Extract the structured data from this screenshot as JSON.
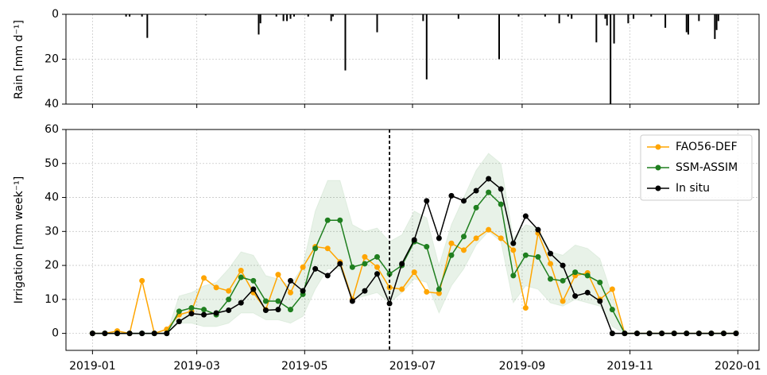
{
  "chart_data": [
    {
      "type": "bar",
      "ylabel": "Rain [mm d⁻¹]",
      "color": "#000000",
      "x": [
        19,
        21,
        28,
        31,
        64,
        94,
        95,
        104,
        108,
        110,
        112,
        114,
        122,
        135,
        136,
        143,
        161,
        187,
        189,
        207,
        230,
        241,
        256,
        264,
        269,
        271,
        285,
        290,
        291,
        293,
        295,
        303,
        306,
        316,
        324,
        336,
        337,
        343,
        352,
        353,
        354
      ],
      "values": [
        1,
        1,
        1,
        10.5,
        0.5,
        9,
        4,
        1,
        3,
        3,
        2,
        1,
        1,
        3,
        1,
        25,
        8,
        3,
        29,
        2,
        20,
        1,
        1,
        4,
        1,
        2,
        12.5,
        2,
        5,
        40,
        13,
        4,
        2,
        1,
        6,
        8,
        9,
        3,
        11,
        7,
        3
      ],
      "xlim": [
        -15,
        377
      ],
      "ylim": [
        40,
        0
      ],
      "yticks": [
        0,
        20,
        40
      ],
      "grid": true
    },
    {
      "type": "line",
      "ylabel": "Irrigation [mm week⁻¹]",
      "legend": "upper right",
      "grid": true,
      "vline": 168,
      "x": [
        0,
        7,
        14,
        21,
        28,
        35,
        42,
        49,
        56,
        63,
        70,
        77,
        84,
        91,
        98,
        105,
        112,
        119,
        126,
        133,
        140,
        147,
        154,
        161,
        168,
        175,
        182,
        189,
        196,
        203,
        210,
        217,
        224,
        231,
        238,
        245,
        252,
        259,
        266,
        273,
        280,
        287,
        294,
        301,
        308,
        315,
        322,
        329,
        336,
        343,
        350,
        357,
        364
      ],
      "xlim": [
        -15,
        377
      ],
      "xticks": [
        {
          "value": 0,
          "label": "2019-01"
        },
        {
          "value": 59,
          "label": "2019-03"
        },
        {
          "value": 120,
          "label": "2019-05"
        },
        {
          "value": 181,
          "label": "2019-07"
        },
        {
          "value": 243,
          "label": "2019-09"
        },
        {
          "value": 304,
          "label": "2019-11"
        },
        {
          "value": 365,
          "label": "2020-01"
        }
      ],
      "ylim": [
        -5,
        60
      ],
      "yticks": [
        0,
        10,
        20,
        30,
        40,
        50,
        60
      ],
      "series": [
        {
          "name": "FAO56-DEF",
          "color": "#ffa500",
          "values": [
            0,
            0,
            0.7,
            0,
            15.5,
            0,
            1.2,
            5.5,
            6.5,
            16.3,
            13.5,
            12.5,
            18.5,
            12,
            7,
            17.3,
            12,
            19.5,
            25.5,
            25,
            21,
            10,
            22.5,
            19.5,
            13.5,
            13,
            18,
            12.2,
            11.8,
            26.5,
            24.5,
            28,
            30.5,
            28,
            24.5,
            7.5,
            29.5,
            20.5,
            9.5,
            17,
            17.8,
            10,
            13,
            0,
            0,
            0,
            0,
            0,
            0,
            0,
            0,
            0,
            0
          ]
        },
        {
          "name": "SSM-ASSIM",
          "color": "#1f7f1f",
          "values": [
            0,
            0,
            0,
            0,
            0,
            0,
            0,
            6.5,
            7.5,
            7,
            5.5,
            10,
            16.5,
            15.5,
            9.5,
            9.5,
            7,
            11.5,
            25,
            33.3,
            33.3,
            19.5,
            20.5,
            22.5,
            17.5,
            20,
            27,
            25.5,
            13,
            23,
            28.5,
            37,
            41.5,
            38,
            17,
            23,
            22.5,
            16,
            15.5,
            18,
            17,
            15,
            7,
            0,
            0,
            0,
            0,
            0,
            0,
            0,
            0,
            0,
            0
          ],
          "lower": [
            0,
            0,
            0,
            0,
            0,
            0,
            0,
            3,
            3,
            2,
            2,
            3,
            6,
            6,
            4,
            4,
            3,
            5,
            13,
            19,
            19,
            10,
            11,
            12,
            9,
            12,
            16,
            15,
            6,
            14,
            19,
            26,
            30,
            27,
            9,
            14,
            13,
            9,
            8,
            10,
            9,
            8,
            2,
            0,
            0,
            0,
            0,
            0,
            0,
            0,
            0,
            0,
            0
          ],
          "upper": [
            0,
            0,
            0,
            0,
            0,
            0,
            0,
            11,
            12,
            14,
            15,
            19,
            24,
            23,
            17,
            16,
            14,
            20,
            36,
            45,
            45,
            32,
            30,
            31,
            27,
            29,
            36,
            34,
            20,
            32,
            40,
            48,
            53,
            50,
            28,
            32,
            31,
            24,
            23,
            26,
            25,
            22,
            11,
            0,
            0,
            0,
            0,
            0,
            0,
            0,
            0,
            0,
            0
          ]
        },
        {
          "name": "In situ",
          "color": "#000000",
          "values": [
            0,
            0,
            0,
            0,
            0,
            0,
            0,
            3.5,
            5.8,
            5.5,
            6,
            6.8,
            9,
            13,
            6.8,
            7,
            15.5,
            12.5,
            19,
            17,
            20.5,
            9.5,
            12.5,
            17.5,
            8.8,
            20.5,
            27.5,
            39,
            28,
            40.5,
            39,
            42,
            45.5,
            42.5,
            26.5,
            34.5,
            30.5,
            23.5,
            20,
            11,
            12,
            9.5,
            0,
            0,
            0,
            0,
            0,
            0,
            0,
            0,
            0,
            0,
            0
          ]
        }
      ]
    }
  ]
}
